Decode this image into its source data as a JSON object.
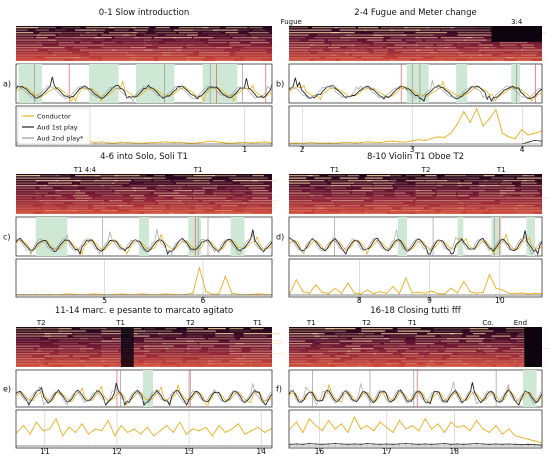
{
  "chart_data": [
    {
      "type": "line",
      "panel_letter": "a)",
      "title": "0-1 Slow introduction",
      "spectrogram_labels": [],
      "x_range": [
        -0.85,
        1.22
      ],
      "x_ticks": [
        1
      ],
      "x_tick_labels": [
        "1"
      ],
      "green_spans": [
        [
          -0.83,
          -0.64
        ],
        [
          -0.26,
          -0.02
        ],
        [
          0.12,
          0.43
        ],
        [
          0.66,
          0.94
        ]
      ],
      "gray_lines": [
        -0.7,
        0.35,
        0.72,
        0.98
      ],
      "red_lines": [
        -0.42,
        0.77,
        1.17
      ],
      "peak_count": 16,
      "legend": {
        "placement": "top-left",
        "entries": [
          "Conductor",
          "Aud 1st play",
          "Aud 2nd play*"
        ]
      },
      "series": [
        {
          "name": "Conductor",
          "values": [
            0.05,
            0.1,
            0.04,
            0.12,
            0.08,
            0.05,
            0.35,
            0.12,
            0.06,
            0.03,
            0.05,
            0.08,
            0.04,
            0.06,
            0.03,
            0.02,
            0.05,
            0.04,
            0.03,
            0.02,
            0.03,
            0.04,
            0.05,
            0.06,
            0.04,
            0.05,
            0.03,
            0.02,
            0.04,
            0.06,
            0.08,
            0.05,
            0.03,
            0.02,
            0.04,
            0.05,
            0.03,
            0.04,
            0.06,
            0.03
          ]
        },
        {
          "name": "Aud 1st play",
          "values": [
            0,
            0,
            0,
            0,
            0,
            0,
            0,
            0,
            0,
            0,
            0,
            0,
            0,
            0,
            0,
            0,
            0,
            0,
            0,
            0,
            0,
            0,
            0,
            0,
            0,
            0,
            0,
            0,
            0,
            0,
            0,
            0,
            0,
            0,
            0,
            0,
            0,
            0,
            0,
            0
          ]
        },
        {
          "name": "Aud 2nd play*",
          "values": [
            0,
            0,
            0,
            0,
            0,
            0,
            0,
            0,
            0,
            0,
            0,
            0,
            0,
            0,
            0,
            0,
            0,
            0,
            0,
            0,
            0,
            0,
            0,
            0,
            0,
            0,
            0,
            0,
            0,
            0,
            0,
            0,
            0,
            0,
            0,
            0,
            0,
            0,
            0,
            0
          ]
        }
      ]
    },
    {
      "type": "line",
      "panel_letter": "b)",
      "title": "2-4 Fugue and Meter change",
      "spectrogram_labels": [
        {
          "text": "Fugue",
          "x": 1.9
        },
        {
          "text": "3:4",
          "x": 3.95
        }
      ],
      "x_range": [
        1.88,
        4.18
      ],
      "x_ticks": [
        2,
        3,
        4
      ],
      "x_tick_labels": [
        "2",
        "3",
        "4"
      ],
      "green_spans": [
        [
          2.95,
          3.15
        ],
        [
          3.4,
          3.5
        ],
        [
          3.9,
          3.98
        ]
      ],
      "gray_lines": [
        3.0,
        3.07,
        3.95
      ],
      "red_lines": [
        2.9,
        4.12
      ],
      "peak_count": 14,
      "legend": null,
      "series": [
        {
          "name": "Conductor",
          "values": [
            0.02,
            0.03,
            0.02,
            0.04,
            0.03,
            0.02,
            0.03,
            0.02,
            0.04,
            0.05,
            0.03,
            0.04,
            0.06,
            0.05,
            0.04,
            0.07,
            0.08,
            0.06,
            0.05,
            0.09,
            0.12,
            0.1,
            0.15,
            0.2,
            0.18,
            0.3,
            0.55,
            0.9,
            0.6,
            0.98,
            0.5,
            0.7,
            0.95,
            0.3,
            0.2,
            0.15,
            0.4,
            0.25,
            0.3,
            0.35
          ]
        },
        {
          "name": "Aud 1st play",
          "values": [
            0,
            0,
            0,
            0,
            0,
            0,
            0,
            0,
            0,
            0,
            0,
            0,
            0,
            0,
            0,
            0,
            0,
            0,
            0,
            0,
            0,
            0,
            0,
            0,
            0,
            0,
            0,
            0,
            0,
            0,
            0,
            0,
            0,
            0,
            0,
            0,
            0,
            0.05,
            0.1,
            0.08
          ]
        },
        {
          "name": "Aud 2nd play*",
          "values": [
            0,
            0,
            0,
            0,
            0,
            0,
            0,
            0,
            0,
            0,
            0,
            0,
            0,
            0,
            0,
            0,
            0,
            0,
            0,
            0,
            0,
            0,
            0,
            0,
            0,
            0,
            0,
            0,
            0,
            0,
            0,
            0,
            0,
            0,
            0,
            0,
            0,
            0,
            0,
            0
          ]
        }
      ]
    },
    {
      "type": "line",
      "panel_letter": "c)",
      "title": "4-6 into Solo, Soli T1",
      "spectrogram_labels": [
        {
          "text": "T1 4:4",
          "x": 4.8
        },
        {
          "text": "T1",
          "x": 5.95
        }
      ],
      "x_range": [
        4.1,
        6.7
      ],
      "x_ticks": [
        5,
        6
      ],
      "x_tick_labels": [
        "5",
        "6"
      ],
      "green_spans": [
        [
          4.3,
          4.62
        ],
        [
          5.35,
          5.45
        ],
        [
          5.85,
          5.98
        ],
        [
          6.28,
          6.42
        ]
      ],
      "gray_lines": [
        4.98,
        5.95,
        6.05
      ],
      "red_lines": [
        5.92
      ],
      "peak_count": 22,
      "legend": null,
      "series": [
        {
          "name": "Conductor",
          "values": [
            0.01,
            0.02,
            0.01,
            0.02,
            0.01,
            0.02,
            0.01,
            0.02,
            0.03,
            0.02,
            0.01,
            0.02,
            0.03,
            0.02,
            0.01,
            0.02,
            0.03,
            0.02,
            0.01,
            0.03,
            0.02,
            0.01,
            0.02,
            0.03,
            0.02,
            0.01,
            0.02,
            0.05,
            0.8,
            0.1,
            0.02,
            0.03,
            0.55,
            0.05,
            0.02,
            0.01,
            0.02,
            0.03,
            0.02,
            0.01
          ]
        },
        {
          "name": "Aud 1st play",
          "values": [
            0,
            0,
            0,
            0,
            0,
            0,
            0,
            0,
            0,
            0,
            0,
            0,
            0,
            0,
            0,
            0,
            0,
            0,
            0,
            0,
            0,
            0,
            0,
            0,
            0,
            0,
            0,
            0,
            0,
            0,
            0,
            0,
            0,
            0,
            0,
            0,
            0,
            0,
            0,
            0
          ]
        },
        {
          "name": "Aud 2nd play*",
          "values": [
            0,
            0,
            0,
            0,
            0,
            0,
            0,
            0,
            0,
            0,
            0,
            0,
            0,
            0,
            0,
            0,
            0,
            0,
            0,
            0,
            0,
            0,
            0,
            0,
            0,
            0,
            0,
            0,
            0,
            0,
            0,
            0,
            0,
            0,
            0,
            0,
            0,
            0,
            0,
            0
          ]
        }
      ]
    },
    {
      "type": "line",
      "panel_letter": "d)",
      "title": "8-10 Violin T1 Oboe T2",
      "spectrogram_labels": [
        {
          "text": "T1",
          "x": 7.65
        },
        {
          "text": "T2",
          "x": 8.95
        },
        {
          "text": "T1",
          "x": 10.02
        }
      ],
      "x_range": [
        7.0,
        10.6
      ],
      "x_ticks": [
        8,
        9,
        10
      ],
      "x_tick_labels": [
        "8",
        "9",
        "10"
      ],
      "green_spans": [
        [
          8.55,
          8.68
        ],
        [
          9.4,
          9.48
        ],
        [
          9.88,
          10.02
        ],
        [
          10.38,
          10.5
        ]
      ],
      "gray_lines": [
        7.65,
        9.05,
        9.92
      ],
      "red_lines": [
        10.0
      ],
      "peak_count": 24,
      "legend": null,
      "series": [
        {
          "name": "Conductor",
          "values": [
            0.05,
            0.45,
            0.1,
            0.05,
            0.3,
            0.08,
            0.04,
            0.2,
            0.05,
            0.35,
            0.06,
            0.03,
            0.15,
            0.04,
            0.1,
            0.05,
            0.25,
            0.04,
            0.5,
            0.06,
            0.08,
            0.05,
            0.12,
            0.04,
            0.03,
            0.2,
            0.06,
            0.4,
            0.1,
            0.05,
            0.08,
            0.6,
            0.2,
            0.15,
            0.05,
            0.04,
            0.06,
            0.03,
            0.05,
            0.04
          ]
        },
        {
          "name": "Aud 1st play",
          "values": [
            0,
            0,
            0,
            0,
            0,
            0,
            0,
            0,
            0,
            0,
            0,
            0,
            0,
            0,
            0,
            0,
            0,
            0,
            0,
            0,
            0,
            0,
            0,
            0,
            0,
            0,
            0,
            0,
            0,
            0,
            0,
            0,
            0,
            0,
            0,
            0,
            0,
            0,
            0,
            0
          ]
        },
        {
          "name": "Aud 2nd play*",
          "values": [
            0,
            0,
            0,
            0,
            0,
            0,
            0,
            0,
            0,
            0,
            0,
            0,
            0,
            0,
            0,
            0,
            0,
            0,
            0,
            0,
            0,
            0,
            0,
            0,
            0,
            0,
            0,
            0,
            0,
            0,
            0,
            0,
            0,
            0,
            0,
            0,
            0,
            0,
            0,
            0
          ]
        }
      ]
    },
    {
      "type": "line",
      "panel_letter": "e)",
      "title": "11-14 marc. e pesante to marcato agitato",
      "spectrogram_labels": [
        {
          "text": "T2",
          "x": 10.95
        },
        {
          "text": "T1",
          "x": 12.05
        },
        {
          "text": "T2",
          "x": 13.02
        },
        {
          "text": "T1",
          "x": 13.95
        }
      ],
      "x_range": [
        10.6,
        14.15
      ],
      "x_ticks": [
        11,
        12,
        13,
        14
      ],
      "x_tick_labels": [
        "11",
        "12",
        "13",
        "14"
      ],
      "green_spans": [
        [
          12.36,
          12.5
        ]
      ],
      "gray_lines": [
        12.05,
        13.02
      ],
      "red_lines": [
        12.0,
        13.0
      ],
      "peak_count": 26,
      "legend": null,
      "series": [
        {
          "name": "Conductor",
          "values": [
            0.4,
            0.6,
            0.35,
            0.7,
            0.45,
            0.5,
            0.8,
            0.3,
            0.55,
            0.4,
            0.65,
            0.35,
            0.5,
            0.45,
            0.75,
            0.3,
            0.6,
            0.4,
            0.5,
            0.35,
            0.55,
            0.3,
            0.45,
            0.6,
            0.4,
            0.7,
            0.35,
            0.5,
            0.45,
            0.55,
            0.3,
            0.6,
            0.4,
            0.5,
            0.65,
            0.35,
            0.45,
            0.55,
            0.4,
            0.5
          ]
        },
        {
          "name": "Aud 1st play",
          "values": [
            0,
            0,
            0,
            0,
            0,
            0,
            0,
            0,
            0,
            0,
            0,
            0,
            0,
            0,
            0,
            0,
            0,
            0,
            0,
            0,
            0,
            0,
            0,
            0,
            0,
            0,
            0,
            0,
            0,
            0,
            0,
            0,
            0,
            0,
            0,
            0,
            0,
            0,
            0,
            0
          ]
        },
        {
          "name": "Aud 2nd play*",
          "values": [
            0,
            0,
            0,
            0,
            0,
            0,
            0,
            0,
            0,
            0,
            0,
            0,
            0,
            0,
            0,
            0,
            0,
            0,
            0,
            0,
            0,
            0,
            0,
            0,
            0,
            0,
            0,
            0,
            0,
            0,
            0,
            0,
            0,
            0,
            0,
            0,
            0,
            0,
            0,
            0
          ]
        }
      ]
    },
    {
      "type": "line",
      "panel_letter": "f)",
      "title": "16-18 Closing tutti fff",
      "spectrogram_labels": [
        {
          "text": "T1",
          "x": 15.88
        },
        {
          "text": "T2",
          "x": 16.7
        },
        {
          "text": "T1",
          "x": 17.38
        },
        {
          "text": "Co.",
          "x": 18.5
        },
        {
          "text": "End",
          "x": 18.98
        }
      ],
      "x_range": [
        15.55,
        19.3
      ],
      "x_ticks": [
        16,
        17,
        18
      ],
      "x_tick_labels": [
        "16",
        "17",
        "18"
      ],
      "green_spans": [
        [
          19.02,
          19.22
        ]
      ],
      "gray_lines": [
        15.9,
        16.75,
        17.4,
        18.62
      ],
      "red_lines": [
        17.45
      ],
      "peak_count": 28,
      "legend": null,
      "series": [
        {
          "name": "Conductor",
          "values": [
            0.5,
            0.7,
            0.4,
            0.8,
            0.6,
            0.45,
            0.75,
            0.5,
            0.65,
            0.4,
            0.85,
            0.5,
            0.6,
            0.45,
            0.7,
            0.55,
            0.4,
            0.75,
            0.5,
            0.6,
            0.45,
            0.8,
            0.5,
            0.65,
            0.4,
            0.7,
            0.55,
            0.6,
            0.45,
            0.75,
            0.5,
            0.4,
            0.6,
            0.35,
            0.5,
            0.3,
            0.25,
            0.2,
            0.15,
            0.1
          ]
        },
        {
          "name": "Aud 1st play",
          "values": [
            0.05,
            0.06,
            0.05,
            0.07,
            0.06,
            0.05,
            0.06,
            0.07,
            0.06,
            0.05,
            0.06,
            0.05,
            0.07,
            0.06,
            0.05,
            0.06,
            0.05,
            0.06,
            0.07,
            0.06,
            0.05,
            0.06,
            0.05,
            0.06,
            0.07,
            0.05,
            0.06,
            0.05,
            0.06,
            0.07,
            0.06,
            0.05,
            0.06,
            0.05,
            0.06,
            0.05,
            0.04,
            0.05,
            0.04,
            0.03
          ]
        },
        {
          "name": "Aud 2nd play*",
          "values": [
            0,
            0,
            0,
            0,
            0,
            0,
            0,
            0,
            0,
            0,
            0,
            0,
            0,
            0,
            0,
            0,
            0,
            0,
            0,
            0,
            0,
            0,
            0,
            0,
            0,
            0,
            0,
            0,
            0,
            0,
            0,
            0,
            0,
            0,
            0,
            0,
            0,
            0,
            0,
            0
          ]
        }
      ]
    }
  ],
  "colors": {
    "conductor": "#e8b020",
    "aud1": "#222222",
    "aud2": "#9a9a9a",
    "green_span": "#cfe8d6",
    "red_line": "#e04040",
    "gray_line": "#888888"
  }
}
